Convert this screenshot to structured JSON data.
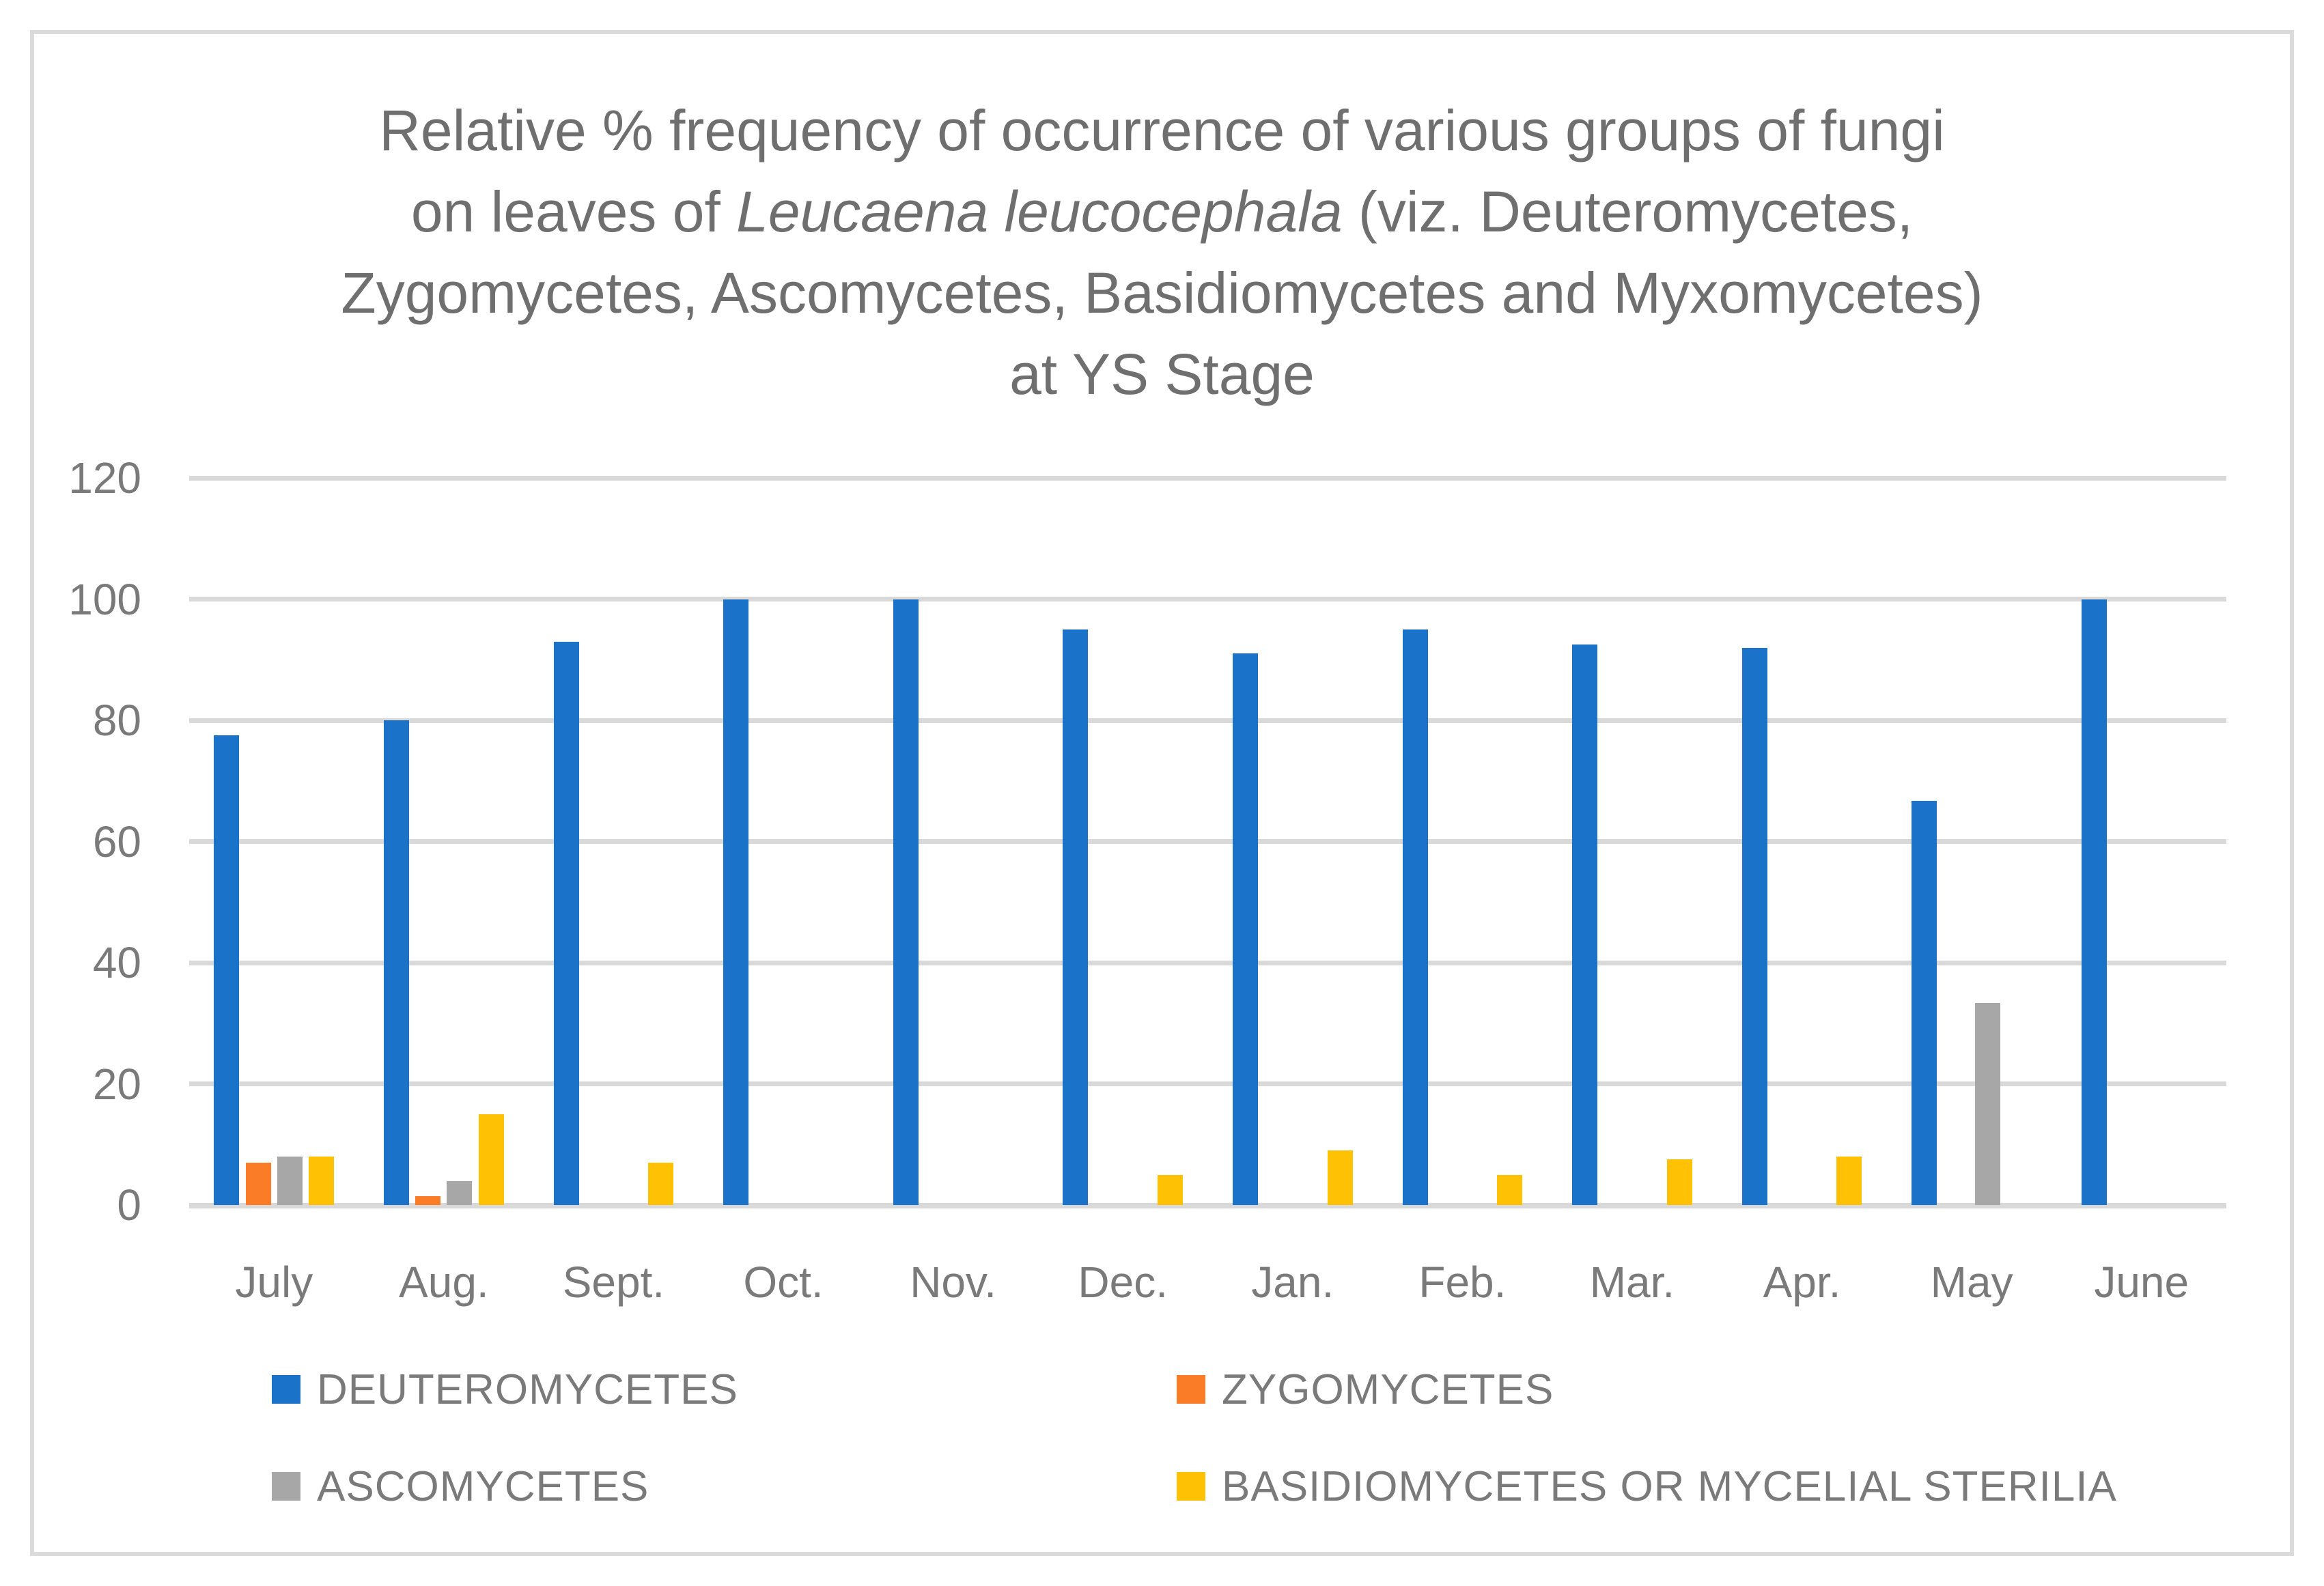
{
  "title": {
    "line1": "Relative % frequency of occurrence of various groups of fungi",
    "line2_pre": "on leaves of ",
    "line2_italic": "Leucaena leucocephala",
    "line2_post": " (viz. Deuteromycetes,",
    "line3": "Zygomycetes, Ascomycetes, Basidiomycetes and Myxomycetes)",
    "line4": "at YS Stage"
  },
  "colors": {
    "deuteromycetes_blue": "#1A73C9",
    "zygomycetes_orange": "#FB7C27",
    "ascomycetes_gray": "#A7A7A7",
    "basidiomycetes_yellow": "#FFC103",
    "gridline": "#D9D9D9",
    "frame_border": "#DBDBDB",
    "title_text": "#6F6F6F",
    "label_text": "#7A7A7A"
  },
  "chart_data": {
    "type": "bar",
    "title": "Relative % frequency of occurrence of various groups of fungi on leaves of Leucaena leucocephala (viz. Deuteromycetes, Zygomycetes, Ascomycetes, Basidiomycetes and Myxomycetes) at YS Stage",
    "categories": [
      "July",
      "Aug.",
      "Sept.",
      "Oct.",
      "Nov.",
      "Dec.",
      "Jan.",
      "Feb.",
      "Mar.",
      "Apr.",
      "May",
      "June"
    ],
    "series": [
      {
        "name": "DEUTEROMYCETES",
        "color": "#1A73C9",
        "values": [
          77.5,
          80,
          93,
          100,
          100,
          95,
          91,
          95,
          92.5,
          92,
          66.7,
          100
        ]
      },
      {
        "name": "ZYGOMYCETES",
        "color": "#FB7C27",
        "values": [
          7,
          1.5,
          null,
          null,
          null,
          null,
          null,
          null,
          null,
          null,
          null,
          null
        ]
      },
      {
        "name": "ASCOMYCETES",
        "color": "#A7A7A7",
        "values": [
          8,
          4,
          null,
          null,
          null,
          null,
          null,
          null,
          null,
          null,
          33.3,
          null
        ]
      },
      {
        "name": "BASIDIOMYCETES OR MYCELIAL STERILIA",
        "color": "#FFC103",
        "values": [
          8,
          15,
          7,
          null,
          null,
          5,
          9,
          5,
          7.5,
          8,
          null,
          null
        ]
      }
    ],
    "xlabel": "",
    "ylabel": "",
    "ylim": [
      0,
      120
    ],
    "yticks": [
      0,
      20,
      40,
      60,
      80,
      100,
      120
    ],
    "grid": true,
    "legend_position": "bottom"
  }
}
